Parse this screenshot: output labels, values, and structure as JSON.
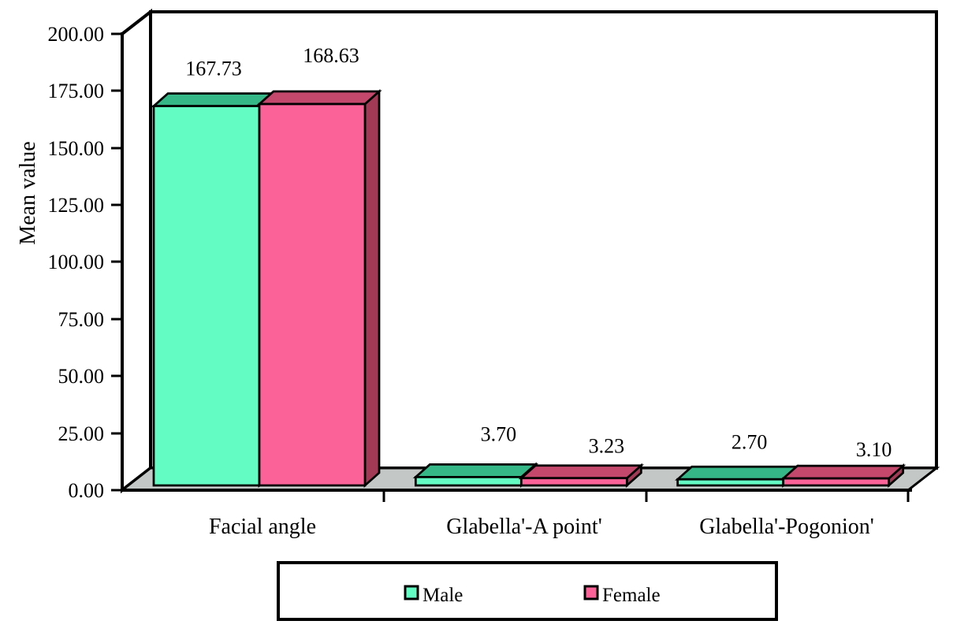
{
  "chart_data": {
    "type": "bar",
    "style": "3d-clustered-column",
    "title": "",
    "categories": [
      "Facial angle",
      "Glabella'-A point'",
      "Glabella'-Pogonion'"
    ],
    "series": [
      {
        "name": "Male",
        "values": [
          167.73,
          3.7,
          2.7
        ],
        "value_labels": [
          "167.73",
          "3.70",
          "2.70"
        ],
        "front_color": "#63FDC4",
        "top_color": "#35B787"
      },
      {
        "name": "Female",
        "values": [
          168.63,
          3.23,
          3.1
        ],
        "value_labels": [
          "168.63",
          "3.23",
          "3.10"
        ],
        "front_color": "#FB6398",
        "top_color": "#C4476C",
        "side_color": "#A23A55"
      }
    ],
    "xlabel": "",
    "ylabel": "Mean value",
    "ylim": [
      0,
      200
    ],
    "ytick_interval": 25,
    "ytick_labels": [
      "0.00",
      "25.00",
      "50.00",
      "75.00",
      "100.00",
      "125.00",
      "150.00",
      "175.00",
      "200.00"
    ],
    "grid": false,
    "legend": {
      "position": "bottom",
      "entries": [
        "Male",
        "Female"
      ]
    },
    "colors": {
      "floor": "#C3C7C6",
      "walls": "#FFFFFF",
      "outline": "#000000",
      "text": "#000000",
      "background": "#FFFFFF"
    }
  }
}
